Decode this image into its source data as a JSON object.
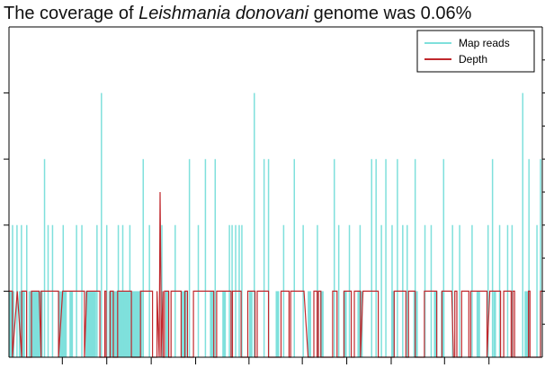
{
  "chart_data": {
    "type": "area",
    "title_parts": [
      "The coverage of ",
      "Leishmania donovani",
      " genome was 0.06%"
    ],
    "xlabel": "",
    "ylabel": "",
    "grid": false,
    "legend_position": "top-right",
    "series": [
      {
        "name": "Map reads",
        "color": "#7fe0dc",
        "style": "spikes"
      },
      {
        "name": "Depth",
        "color": "#c0282d",
        "style": "step-line"
      }
    ],
    "x_range": [
      0,
      600
    ],
    "ylim": [
      0,
      10
    ],
    "map_reads_spikes": [
      {
        "x": 4,
        "y": 4
      },
      {
        "x": 9,
        "y": 4
      },
      {
        "x": 14,
        "y": 4
      },
      {
        "x": 20,
        "y": 4
      },
      {
        "x": 40,
        "y": 6
      },
      {
        "x": 44,
        "y": 4
      },
      {
        "x": 49,
        "y": 4
      },
      {
        "x": 61,
        "y": 4
      },
      {
        "x": 76,
        "y": 4
      },
      {
        "x": 82,
        "y": 4
      },
      {
        "x": 99,
        "y": 4
      },
      {
        "x": 104,
        "y": 8
      },
      {
        "x": 110,
        "y": 4
      },
      {
        "x": 123,
        "y": 4
      },
      {
        "x": 128,
        "y": 4
      },
      {
        "x": 136,
        "y": 4
      },
      {
        "x": 151,
        "y": 6
      },
      {
        "x": 158,
        "y": 4
      },
      {
        "x": 172,
        "y": 4
      },
      {
        "x": 187,
        "y": 4
      },
      {
        "x": 203,
        "y": 6
      },
      {
        "x": 213,
        "y": 4
      },
      {
        "x": 221,
        "y": 6
      },
      {
        "x": 232,
        "y": 6
      },
      {
        "x": 248,
        "y": 4
      },
      {
        "x": 251,
        "y": 4
      },
      {
        "x": 255,
        "y": 4
      },
      {
        "x": 259,
        "y": 4
      },
      {
        "x": 262,
        "y": 4
      },
      {
        "x": 276,
        "y": 8
      },
      {
        "x": 287,
        "y": 6
      },
      {
        "x": 292,
        "y": 6
      },
      {
        "x": 309,
        "y": 4
      },
      {
        "x": 321,
        "y": 6
      },
      {
        "x": 331,
        "y": 4
      },
      {
        "x": 347,
        "y": 4
      },
      {
        "x": 366,
        "y": 6
      },
      {
        "x": 371,
        "y": 4
      },
      {
        "x": 383,
        "y": 4
      },
      {
        "x": 395,
        "y": 4
      },
      {
        "x": 408,
        "y": 6
      },
      {
        "x": 413,
        "y": 6
      },
      {
        "x": 419,
        "y": 4
      },
      {
        "x": 424,
        "y": 6
      },
      {
        "x": 431,
        "y": 4
      },
      {
        "x": 437,
        "y": 6
      },
      {
        "x": 443,
        "y": 4
      },
      {
        "x": 448,
        "y": 4
      },
      {
        "x": 457,
        "y": 6
      },
      {
        "x": 468,
        "y": 4
      },
      {
        "x": 475,
        "y": 4
      },
      {
        "x": 489,
        "y": 6
      },
      {
        "x": 499,
        "y": 4
      },
      {
        "x": 507,
        "y": 4
      },
      {
        "x": 521,
        "y": 4
      },
      {
        "x": 539,
        "y": 4
      },
      {
        "x": 544,
        "y": 6
      },
      {
        "x": 552,
        "y": 4
      },
      {
        "x": 561,
        "y": 4
      },
      {
        "x": 566,
        "y": 4
      },
      {
        "x": 578,
        "y": 8
      },
      {
        "x": 585,
        "y": 6
      },
      {
        "x": 594,
        "y": 4
      },
      {
        "x": 598,
        "y": 6
      }
    ],
    "depth_peak": {
      "x": 170,
      "y": 5
    }
  }
}
